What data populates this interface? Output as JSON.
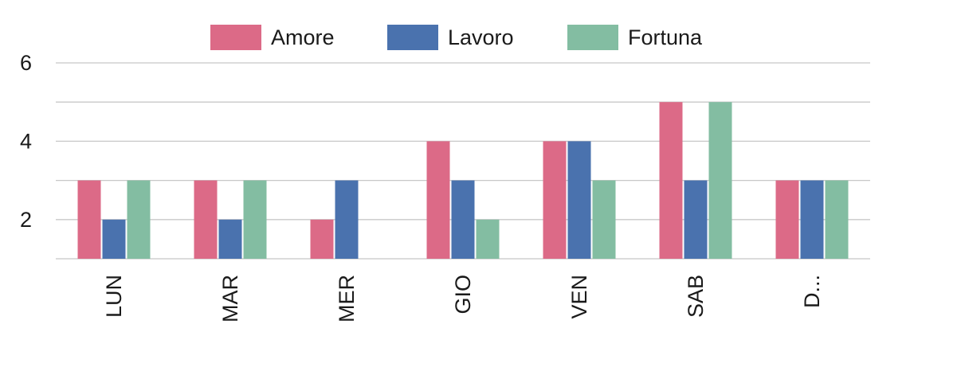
{
  "chart_data": {
    "type": "bar",
    "categories": [
      "LUN",
      "MAR",
      "MER",
      "GIO",
      "VEN",
      "SAB",
      "D..."
    ],
    "series": [
      {
        "name": "Amore",
        "color": "#dc6a87",
        "values": [
          3,
          3,
          2,
          4,
          4,
          5,
          3
        ]
      },
      {
        "name": "Lavoro",
        "color": "#4a72ae",
        "values": [
          2,
          2,
          3,
          3,
          4,
          3,
          3
        ]
      },
      {
        "name": "Fortuna",
        "color": "#83bda2",
        "values": [
          3,
          3,
          null,
          2,
          3,
          5,
          3
        ]
      }
    ],
    "title": "",
    "xlabel": "",
    "ylabel": "",
    "ylim": [
      1,
      6
    ],
    "yticks": [
      2,
      4,
      6
    ],
    "grid": true,
    "legend_position": "top-center"
  }
}
